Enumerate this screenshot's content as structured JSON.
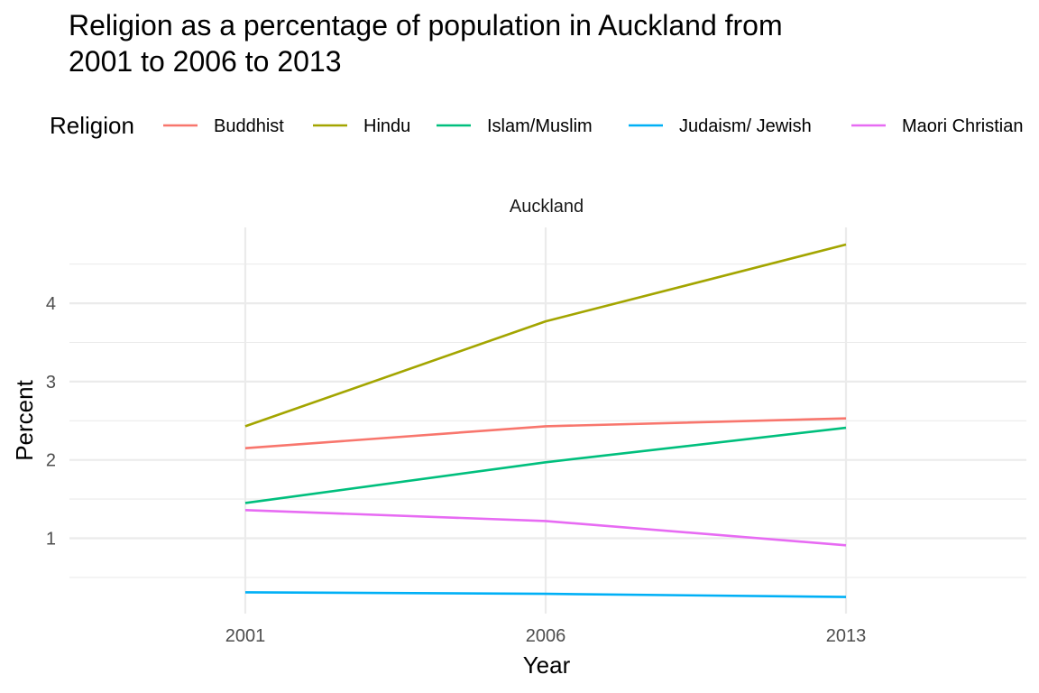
{
  "chart_data": {
    "type": "line",
    "title_lines": [
      "Religion as a percentage of population in Auckland from",
      "2001 to 2006 to 2013"
    ],
    "facet_label": "Auckland",
    "xlabel": "Year",
    "ylabel": "Percent",
    "legend_title": "Religion",
    "legend_position": "top",
    "grid": true,
    "x": [
      "2001",
      "2006",
      "2013"
    ],
    "yticks": [
      "1",
      "2",
      "3",
      "4"
    ],
    "series": [
      {
        "name": "Buddhist",
        "color": "#F8766D",
        "values": [
          2.15,
          2.43,
          2.53
        ]
      },
      {
        "name": "Hindu",
        "color": "#A3A500",
        "values": [
          2.43,
          3.77,
          4.75
        ]
      },
      {
        "name": "Islam/Muslim",
        "color": "#00BF7D",
        "values": [
          1.45,
          1.97,
          2.41
        ]
      },
      {
        "name": "Judaism/ Jewish",
        "color": "#00B0F6",
        "values": [
          0.31,
          0.29,
          0.25
        ]
      },
      {
        "name": "Maori Christian",
        "color": "#E76BF3",
        "values": [
          1.36,
          1.22,
          0.91
        ]
      }
    ]
  }
}
